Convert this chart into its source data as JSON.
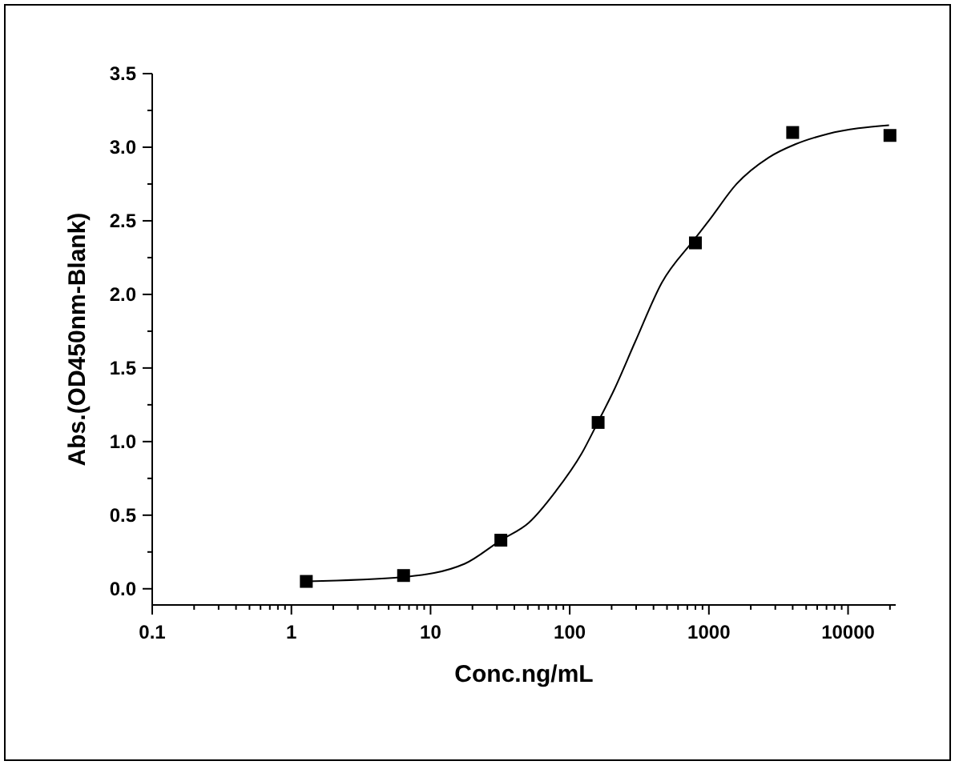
{
  "chart_data": {
    "type": "scatter",
    "xlabel": "Conc.ng/mL",
    "ylabel": "Abs.(OD450nm-Blank)",
    "log": "x",
    "grid": false,
    "xlim": [
      0.1,
      22000
    ],
    "ylim": [
      -0.11,
      3.5
    ],
    "xticks": [
      {
        "value": 0.1,
        "label": "0.1"
      },
      {
        "value": 0.2,
        "label": null
      },
      {
        "value": 0.3,
        "label": null
      },
      {
        "value": 0.4,
        "label": null
      },
      {
        "value": 0.5,
        "label": null
      },
      {
        "value": 0.6,
        "label": null
      },
      {
        "value": 0.7,
        "label": null
      },
      {
        "value": 0.8,
        "label": null
      },
      {
        "value": 0.9,
        "label": null
      },
      1,
      {
        "value": 2,
        "label": null
      },
      {
        "value": 3,
        "label": null
      },
      {
        "value": 4,
        "label": null
      },
      {
        "value": 5,
        "label": null
      },
      {
        "value": 6,
        "label": null
      },
      {
        "value": 7,
        "label": null
      },
      {
        "value": 8,
        "label": null
      },
      {
        "value": 9,
        "label": null
      },
      10,
      {
        "value": 20,
        "label": null
      },
      {
        "value": 30,
        "label": null
      },
      {
        "value": 40,
        "label": null
      },
      {
        "value": 50,
        "label": null
      },
      {
        "value": 60,
        "label": null
      },
      {
        "value": 70,
        "label": null
      },
      {
        "value": 80,
        "label": null
      },
      {
        "value": 90,
        "label": null
      },
      100,
      {
        "value": 200,
        "label": null
      },
      {
        "value": 300,
        "label": null
      },
      {
        "value": 400,
        "label": null
      },
      {
        "value": 500,
        "label": null
      },
      {
        "value": 600,
        "label": null
      },
      {
        "value": 700,
        "label": null
      },
      {
        "value": 800,
        "label": null
      },
      {
        "value": 900,
        "label": null
      },
      1000,
      {
        "value": 2000,
        "label": null
      },
      {
        "value": 3000,
        "label": null
      },
      {
        "value": 4000,
        "label": null
      },
      {
        "value": 5000,
        "label": null
      },
      {
        "value": 6000,
        "label": null
      },
      {
        "value": 7000,
        "label": null
      },
      {
        "value": 8000,
        "label": null
      },
      {
        "value": 9000,
        "label": null
      },
      10000,
      {
        "value": 20000,
        "label": null
      }
    ],
    "yticks": [
      {
        "value": 0,
        "label": "0.0"
      },
      {
        "value": 0.25,
        "label": null
      },
      0.5,
      {
        "value": 0.75,
        "label": null
      },
      {
        "value": 1,
        "label": "1.0"
      },
      {
        "value": 1.25,
        "label": null
      },
      1.5,
      {
        "value": 1.75,
        "label": null
      },
      {
        "value": 2,
        "label": "2.0"
      },
      {
        "value": 2.25,
        "label": null
      },
      2.5,
      {
        "value": 2.75,
        "label": null
      },
      {
        "value": 3,
        "label": "3.0"
      },
      {
        "value": 3.25,
        "label": null
      },
      3.5
    ],
    "series": [
      {
        "marker": "square",
        "color": "#000000",
        "x": [
          1.28,
          6.4,
          32,
          160,
          800,
          4000,
          20000
        ],
        "values": [
          0.05,
          0.09,
          0.33,
          1.13,
          2.35,
          3.1,
          3.08
        ]
      },
      {
        "type": "line",
        "marker": "none",
        "line_style": "solid",
        "color": "#000000",
        "x": [
          1.29,
          6.4,
          17.6,
          32,
          51,
          79,
          122,
          159,
          208,
          296,
          459,
          780,
          1016,
          1580,
          2690,
          4180,
          7100,
          19700
        ],
        "values": [
          0.05,
          0.08,
          0.17,
          0.33,
          0.45,
          0.66,
          0.92,
          1.13,
          1.35,
          1.68,
          2.08,
          2.37,
          2.51,
          2.75,
          2.93,
          3.02,
          3.09,
          3.15
        ]
      }
    ]
  }
}
